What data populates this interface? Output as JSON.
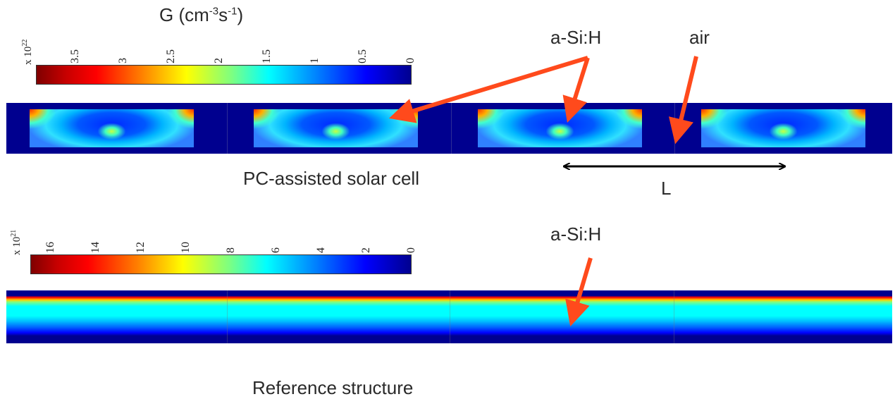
{
  "colorbar_top": {
    "title": "G (cm",
    "title_exp1": "-3",
    "title_mid": "s",
    "title_exp2": "-1",
    "title_end": ")",
    "multiplier": "x 10",
    "multiplier_exp": "22",
    "ticks": [
      "3.5",
      "3",
      "2.5",
      "2",
      "1.5",
      "1",
      "0.5",
      "0"
    ]
  },
  "colorbar_bottom": {
    "multiplier": "x 10",
    "multiplier_exp": "21",
    "ticks": [
      "16",
      "14",
      "12",
      "10",
      "8",
      "6",
      "4",
      "2",
      "0"
    ]
  },
  "labels": {
    "asih_top": "a-Si:H",
    "air": "air",
    "pc_cell": "PC-assisted solar cell",
    "period": "L",
    "asih_bottom": "a-Si:H",
    "reference": "Reference structure"
  },
  "colors": {
    "arrow": "#ff4a1c",
    "background_field": "#00008f",
    "jet": [
      "#7f0000",
      "#ff0000",
      "#ff7f00",
      "#ffff00",
      "#7fff7f",
      "#00ffff",
      "#007fff",
      "#0000ff",
      "#00008f"
    ]
  }
}
